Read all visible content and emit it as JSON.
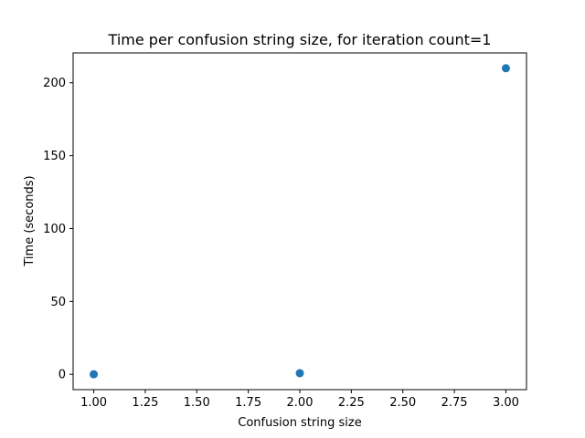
{
  "chart_data": {
    "type": "scatter",
    "title": "Time per confusion string size, for iteration count=1",
    "xlabel": "Confusion string size",
    "ylabel": "Time (seconds)",
    "xlim": [
      0.9,
      3.1
    ],
    "ylim": [
      -10.5,
      220.5
    ],
    "xticks": [
      1.0,
      1.25,
      1.5,
      1.75,
      2.0,
      2.25,
      2.5,
      2.75,
      3.0
    ],
    "xtick_labels": [
      "1.00",
      "1.25",
      "1.50",
      "1.75",
      "2.00",
      "2.25",
      "2.50",
      "2.75",
      "3.00"
    ],
    "yticks": [
      0,
      50,
      100,
      150,
      200
    ],
    "ytick_labels": [
      "0",
      "50",
      "100",
      "150",
      "200"
    ],
    "grid": false,
    "series": [
      {
        "color": "#1f77b4",
        "x": [
          1,
          2,
          3
        ],
        "y": [
          0.05,
          0.8,
          210
        ]
      }
    ]
  }
}
